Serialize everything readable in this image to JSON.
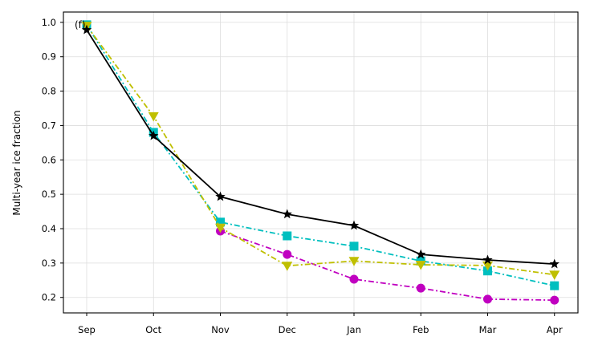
{
  "chart_data": {
    "type": "line",
    "panel_label": "(f)",
    "title": "",
    "xlabel": "",
    "ylabel": "Multi-year ice fraction",
    "categories": [
      "Sep",
      "Oct",
      "Nov",
      "Dec",
      "Jan",
      "Feb",
      "Mar",
      "Apr"
    ],
    "ylim": [
      0.155,
      1.03
    ],
    "yticks": [
      0.2,
      0.3,
      0.4,
      0.5,
      0.6,
      0.7,
      0.8,
      0.9,
      1.0
    ],
    "ytick_labels": [
      "0.2",
      "0.3",
      "0.4",
      "0.5",
      "0.6",
      "0.7",
      "0.8",
      "0.9",
      "1.0"
    ],
    "grid": true,
    "legend": "none",
    "series": [
      {
        "values": [
          null,
          null,
          0.393,
          0.325,
          0.253,
          0.227,
          0.195,
          0.192
        ],
        "color": "#c000c0",
        "marker": "circle",
        "linestyle": "dashdot"
      },
      {
        "values": [
          0.993,
          0.68,
          0.419,
          0.379,
          0.349,
          0.306,
          0.277,
          0.234
        ],
        "color": "#00bfbf",
        "marker": "square",
        "linestyle": "dashdot"
      },
      {
        "values": [
          0.99,
          0.727,
          0.403,
          0.292,
          0.306,
          0.295,
          0.293,
          0.266
        ],
        "color": "#bfbf00",
        "marker": "triangle-down",
        "linestyle": "dashdot"
      },
      {
        "values": [
          0.978,
          0.67,
          0.493,
          0.442,
          0.409,
          0.325,
          0.309,
          0.297
        ],
        "color": "#000000",
        "marker": "star",
        "linestyle": "solid"
      }
    ]
  }
}
